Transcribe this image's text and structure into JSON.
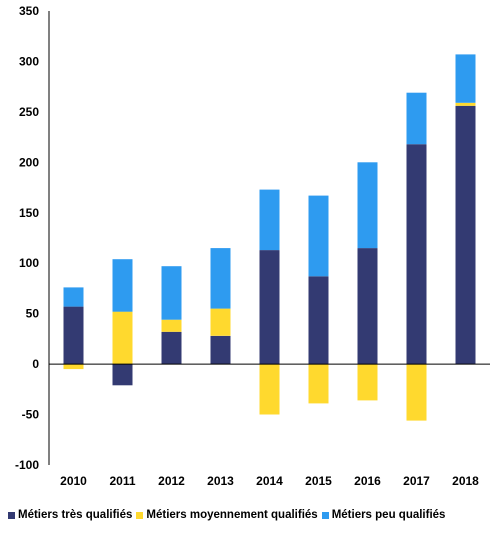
{
  "chart_data": {
    "type": "bar",
    "stacked": true,
    "categories": [
      "2010",
      "2011",
      "2012",
      "2013",
      "2014",
      "2015",
      "2016",
      "2017",
      "2018"
    ],
    "series": [
      {
        "name": "Métiers très qualifiés",
        "color": "#333a72",
        "values": [
          57,
          -21,
          32,
          28,
          113,
          87,
          115,
          218,
          256
        ]
      },
      {
        "name": "Métiers moyennement qualifiés",
        "color": "#ffd92e",
        "values": [
          -5,
          52,
          12,
          27,
          -50,
          -39,
          -36,
          -56,
          3
        ]
      },
      {
        "name": "Métiers peu qualifiés",
        "color": "#2e9bf0",
        "values": [
          19,
          52,
          53,
          60,
          60,
          80,
          85,
          51,
          48
        ]
      }
    ],
    "y_ticks": [
      "350",
      "300",
      "250",
      "200",
      "150",
      "100",
      "50",
      "0",
      "-50",
      "-100"
    ],
    "ylim": [
      -100,
      350
    ],
    "grid": false,
    "legend_position": "bottom",
    "title": "",
    "xlabel": "",
    "ylabel": ""
  }
}
